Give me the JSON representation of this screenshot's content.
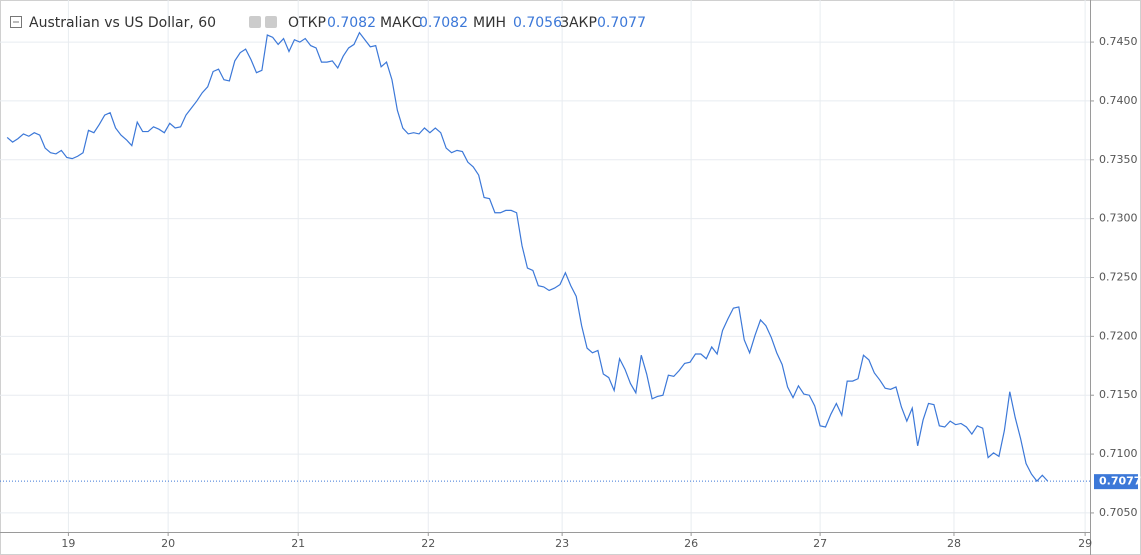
{
  "chart_data": {
    "type": "line",
    "title": "Australian vs US Dollar, 60",
    "ohlc": [
      {
        "label": "ОТКР",
        "value": 0.7082
      },
      {
        "label": "МАКС",
        "value": 0.7082
      },
      {
        "label": "МИН",
        "value": 0.7056
      },
      {
        "label": "ЗАКР",
        "value": 0.7077
      }
    ],
    "color": "#3c78d8",
    "grid": true,
    "values": [
      0.7369,
      0.7365,
      0.7368,
      0.7372,
      0.737,
      0.7373,
      0.7371,
      0.736,
      0.7356,
      0.7355,
      0.7358,
      0.7352,
      0.7351,
      0.7353,
      0.7356,
      0.7375,
      0.7373,
      0.738,
      0.7388,
      0.739,
      0.7377,
      0.7371,
      0.7367,
      0.7362,
      0.7382,
      0.7374,
      0.7374,
      0.7378,
      0.7376,
      0.7373,
      0.7381,
      0.7377,
      0.7378,
      0.7388,
      0.7394,
      0.74,
      0.7407,
      0.7412,
      0.7425,
      0.7427,
      0.7418,
      0.7417,
      0.7434,
      0.7441,
      0.7444,
      0.7435,
      0.7424,
      0.7426,
      0.7456,
      0.7454,
      0.7448,
      0.7453,
      0.7442,
      0.7452,
      0.745,
      0.7453,
      0.7447,
      0.7445,
      0.7433,
      0.7433,
      0.7434,
      0.7428,
      0.7438,
      0.7445,
      0.7448,
      0.7458,
      0.7452,
      0.7446,
      0.7447,
      0.7429,
      0.7433,
      0.7418,
      0.7392,
      0.7377,
      0.7372,
      0.7373,
      0.7372,
      0.7377,
      0.7373,
      0.7377,
      0.7373,
      0.736,
      0.7356,
      0.7358,
      0.7357,
      0.7348,
      0.7344,
      0.7337,
      0.7318,
      0.7317,
      0.7305,
      0.7305,
      0.7307,
      0.7307,
      0.7305,
      0.7277,
      0.7258,
      0.7256,
      0.7243,
      0.7242,
      0.7239,
      0.7241,
      0.7244,
      0.7254,
      0.7243,
      0.7234,
      0.7209,
      0.719,
      0.7186,
      0.7188,
      0.7168,
      0.7165,
      0.7154,
      0.7181,
      0.7172,
      0.716,
      0.7152,
      0.7184,
      0.7168,
      0.7147,
      0.7149,
      0.715,
      0.7167,
      0.7166,
      0.7171,
      0.7177,
      0.7178,
      0.7185,
      0.7185,
      0.7181,
      0.7191,
      0.7185,
      0.7205,
      0.7215,
      0.7224,
      0.7225,
      0.7197,
      0.7186,
      0.7201,
      0.7214,
      0.7209,
      0.7199,
      0.7186,
      0.7176,
      0.7157,
      0.7148,
      0.7158,
      0.7151,
      0.715,
      0.7141,
      0.7124,
      0.7123,
      0.7134,
      0.7143,
      0.7133,
      0.7162,
      0.7162,
      0.7164,
      0.7184,
      0.718,
      0.7169,
      0.7163,
      0.7156,
      0.7155,
      0.7157,
      0.714,
      0.7128,
      0.7139,
      0.7107,
      0.7129,
      0.7143,
      0.7142,
      0.7124,
      0.7123,
      0.7128,
      0.7125,
      0.7126,
      0.7123,
      0.7117,
      0.7124,
      0.7122,
      0.7097,
      0.7101,
      0.7098,
      0.712,
      0.7153,
      0.7131,
      0.7113,
      0.7092,
      0.7083,
      0.7077,
      0.7082,
      0.7077
    ],
    "xlim": [
      -0.4,
      199.8
    ],
    "xticks": [
      {
        "value": 11.3,
        "label": "19"
      },
      {
        "value": 29.7,
        "label": "20"
      },
      {
        "value": 53.7,
        "label": "21"
      },
      {
        "value": 77.7,
        "label": "22"
      },
      {
        "value": 102.4,
        "label": "23"
      },
      {
        "value": 126.2,
        "label": "26"
      },
      {
        "value": 150,
        "label": "27"
      },
      {
        "value": 174.7,
        "label": "28"
      },
      {
        "value": 198.9,
        "label": "29"
      }
    ],
    "ylim": [
      0.70338,
      0.74815
    ],
    "yticks": [
      {
        "value": 0.705,
        "label": "0.7050"
      },
      {
        "value": 0.71,
        "label": "0.7100"
      },
      {
        "value": 0.715,
        "label": "0.7150"
      },
      {
        "value": 0.72,
        "label": "0.7200"
      },
      {
        "value": 0.725,
        "label": "0.7250"
      },
      {
        "value": 0.73,
        "label": "0.7300"
      },
      {
        "value": 0.735,
        "label": "0.7350"
      },
      {
        "value": 0.74,
        "label": "0.7400"
      },
      {
        "value": 0.745,
        "label": "0.7450"
      }
    ]
  }
}
